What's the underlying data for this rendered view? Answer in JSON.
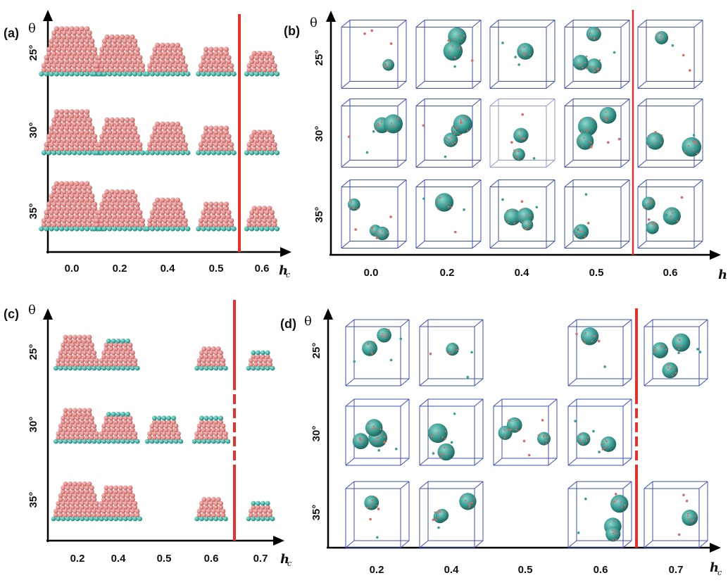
{
  "colors": {
    "particle": "#e38a87",
    "particle_dark": "#b0504f",
    "base": "#3fb3a6",
    "base_dark": "#1f6d66",
    "red_line": "#e8312a",
    "box": "#3c4fb4",
    "axis": "#000000"
  },
  "axis_symbols": {
    "theta": "θ",
    "h": "h",
    "h_sub": "c"
  },
  "panels": [
    {
      "id": "a",
      "label": "(a)",
      "type": "structures",
      "x_ticks": [
        "0.0",
        "0.2",
        "0.4",
        "0.5",
        "0.6"
      ],
      "y_ticks": [
        "25°",
        "30°",
        "35°"
      ],
      "grid": [
        [
          1,
          1,
          1,
          1,
          1
        ],
        [
          1,
          1,
          1,
          1,
          1
        ],
        [
          1,
          1,
          1,
          1,
          1
        ]
      ],
      "cap": [
        [
          0,
          0,
          0,
          0,
          0
        ],
        [
          0,
          0,
          0,
          0,
          0
        ],
        [
          0,
          0,
          0,
          0,
          0
        ]
      ],
      "line_after_col": 4,
      "line_dashed_rows": []
    },
    {
      "id": "b",
      "label": "(b)",
      "type": "boxes",
      "x_ticks": [
        "0.0",
        "0.2",
        "0.4",
        "0.5",
        "0.6"
      ],
      "y_ticks": [
        "25°",
        "30°",
        "35°"
      ],
      "grid": [
        [
          1,
          1,
          1,
          1,
          1
        ],
        [
          1,
          1,
          1,
          1,
          1
        ],
        [
          1,
          1,
          1,
          1,
          1
        ]
      ],
      "line_after_col": 4,
      "line_dashed_rows": []
    },
    {
      "id": "c",
      "label": "(c)",
      "type": "structures",
      "x_ticks": [
        "0.2",
        "0.4",
        "0.5",
        "0.6",
        "0.7"
      ],
      "y_ticks": [
        "25°",
        "30°",
        "35°"
      ],
      "grid": [
        [
          1,
          1,
          0,
          1,
          1
        ],
        [
          1,
          1,
          1,
          1,
          0
        ],
        [
          1,
          1,
          0,
          1,
          1
        ]
      ],
      "cap": [
        [
          0,
          1,
          0,
          0,
          1
        ],
        [
          0,
          1,
          1,
          1,
          0
        ],
        [
          0,
          0,
          0,
          0,
          1
        ]
      ],
      "line_after_col": 4,
      "line_dashed_rows": [
        1
      ]
    },
    {
      "id": "d",
      "label": "(d)",
      "type": "boxes",
      "x_ticks": [
        "0.2",
        "0.4",
        "0.5",
        "0.6",
        "0.7"
      ],
      "y_ticks": [
        "25°",
        "30°",
        "35°"
      ],
      "grid": [
        [
          1,
          1,
          0,
          1,
          1
        ],
        [
          1,
          1,
          1,
          1,
          0
        ],
        [
          1,
          1,
          0,
          1,
          1
        ]
      ],
      "line_after_col": 4,
      "line_dashed_rows": [
        1
      ]
    }
  ]
}
